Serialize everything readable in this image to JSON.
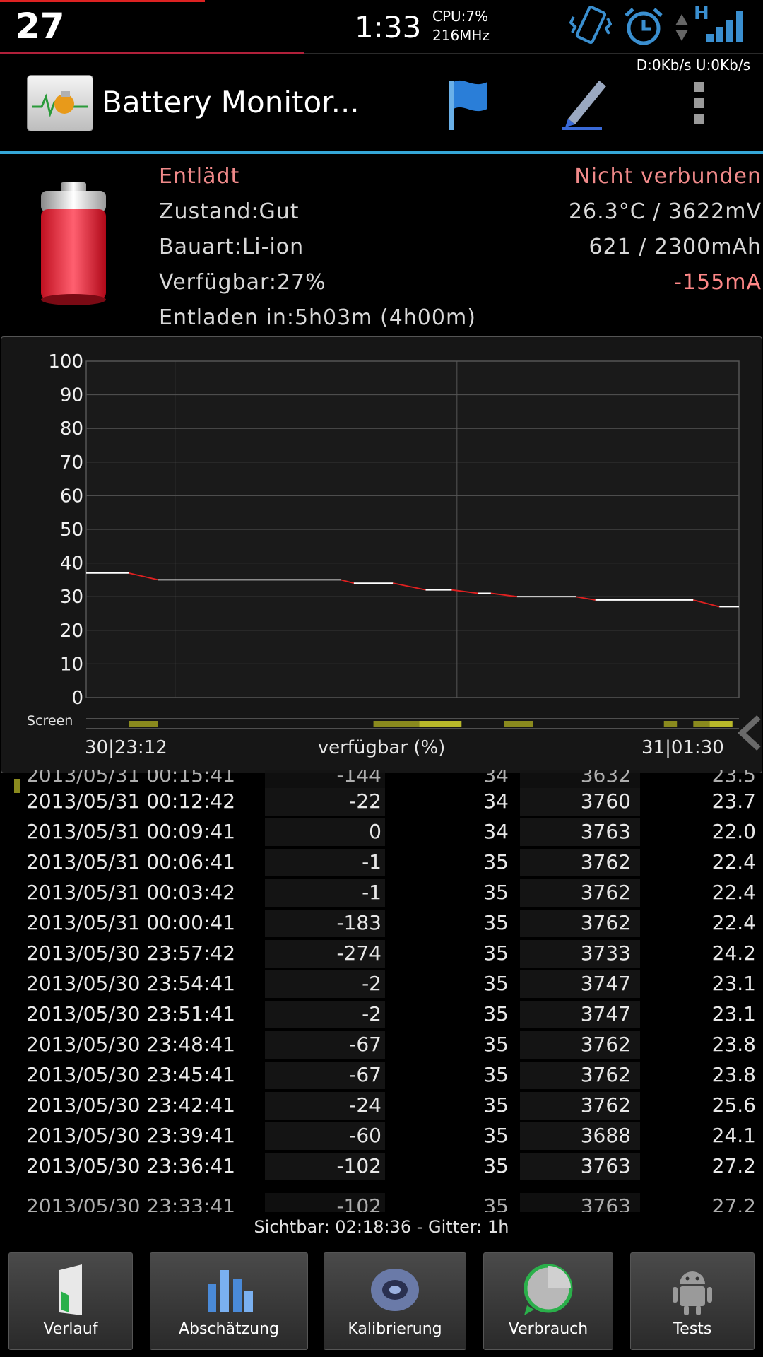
{
  "status_bar": {
    "battery_level": "27",
    "time": "1:33",
    "cpu_line1": "CPU:7%",
    "cpu_line2": "216MHz",
    "network_type": "H",
    "net_speed": "D:0Kb/s U:0Kb/s",
    "icons": [
      "vibrate-icon",
      "alarm-icon",
      "data-arrows-icon",
      "signal-icon"
    ]
  },
  "action_bar": {
    "title": "Battery Monitor...",
    "icons": [
      "app-icon",
      "flag-icon",
      "pen-icon",
      "overflow-menu-icon"
    ]
  },
  "battery_info": {
    "state": "Entlädt",
    "connection": "Nicht verbunden",
    "health": "Zustand:Gut",
    "temp_voltage": "26.3°C / 3622mV",
    "type": "Bauart:Li-ion",
    "capacity": "621 / 2300mAh",
    "available": "Verfügbar:27%",
    "current": "-155mA",
    "discharge_time": "Entladen in:5h03m (4h00m)"
  },
  "chart_data": {
    "type": "line",
    "title": "verfügbar (%)",
    "xlabel": "verfügbar (%)",
    "ylabel": "",
    "ylim": [
      0,
      100
    ],
    "yticks": [
      "100",
      "90",
      "80",
      "70",
      "60",
      "50",
      "40",
      "30",
      "20",
      "10",
      "0"
    ],
    "x_start_label": "30|23:12",
    "x_end_label": "31|01:30",
    "screen_label": "Screen",
    "series": [
      {
        "x": [
          0,
          0.065,
          0.11,
          0.39,
          0.41,
          0.47,
          0.52,
          0.56,
          0.6,
          0.62,
          0.66,
          0.75,
          0.78,
          0.93,
          0.97,
          1.0
        ],
        "y": [
          37,
          37,
          35,
          35,
          34,
          34,
          32,
          32,
          31,
          31,
          30,
          30,
          29,
          29,
          27,
          27
        ]
      }
    ],
    "colors": {
      "line": "#ffffff",
      "drop": "#e02020",
      "grid": "#555555",
      "screen_on": "#8a8a1e"
    }
  },
  "table": {
    "partial_top": [
      "2013/05/31 00:15:41",
      "-144",
      "34",
      "3632",
      "23.5"
    ],
    "rows": [
      [
        "2013/05/31 00:12:42",
        "-22",
        "34",
        "3760",
        "23.7"
      ],
      [
        "2013/05/31 00:09:41",
        "0",
        "34",
        "3763",
        "22.0"
      ],
      [
        "2013/05/31 00:06:41",
        "-1",
        "35",
        "3762",
        "22.4"
      ],
      [
        "2013/05/31 00:03:42",
        "-1",
        "35",
        "3762",
        "22.4"
      ],
      [
        "2013/05/31 00:00:41",
        "-183",
        "35",
        "3762",
        "22.4"
      ],
      [
        "2013/05/30 23:57:42",
        "-274",
        "35",
        "3733",
        "24.2"
      ],
      [
        "2013/05/30 23:54:41",
        "-2",
        "35",
        "3747",
        "23.1"
      ],
      [
        "2013/05/30 23:51:41",
        "-2",
        "35",
        "3747",
        "23.1"
      ],
      [
        "2013/05/30 23:48:41",
        "-67",
        "35",
        "3762",
        "23.8"
      ],
      [
        "2013/05/30 23:45:41",
        "-67",
        "35",
        "3762",
        "23.8"
      ],
      [
        "2013/05/30 23:42:41",
        "-24",
        "35",
        "3762",
        "25.6"
      ],
      [
        "2013/05/30 23:39:41",
        "-60",
        "35",
        "3688",
        "24.1"
      ],
      [
        "2013/05/30 23:36:41",
        "-102",
        "35",
        "3763",
        "27.2"
      ]
    ],
    "partial_bottom": [
      "2013/05/30 23:33:41",
      "-102",
      "35",
      "3763",
      "27.2"
    ]
  },
  "footer": {
    "visible_range": "Sichtbar: 02:18:36 - Gitter: 1h"
  },
  "bottom_nav": [
    {
      "label": "Verlauf",
      "icon": "door-icon"
    },
    {
      "label": "Abschätzung",
      "icon": "bar-chart-icon"
    },
    {
      "label": "Kalibrierung",
      "icon": "disc-icon"
    },
    {
      "label": "Verbrauch",
      "icon": "pie-icon"
    },
    {
      "label": "Tests",
      "icon": "android-icon"
    }
  ]
}
